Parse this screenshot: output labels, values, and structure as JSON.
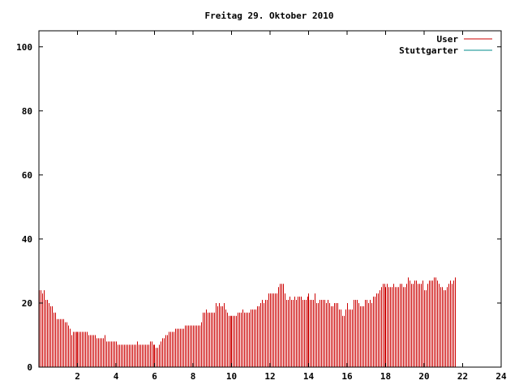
{
  "chart_data": {
    "type": "bar",
    "title": "Freitag 29. Oktober 2010",
    "xlabel": "",
    "ylabel": "",
    "xlim": [
      0,
      24
    ],
    "ylim": [
      0,
      105
    ],
    "grid": false,
    "legend": "top-right",
    "x_ticks": [
      2,
      4,
      6,
      8,
      10,
      12,
      14,
      16,
      18,
      20,
      22,
      24
    ],
    "y_ticks": [
      0,
      20,
      40,
      60,
      80,
      100
    ],
    "colors": {
      "User": "#cc0000",
      "Stuttgarter": "#008b8b"
    },
    "series": [
      {
        "name": "User",
        "x_start": 0,
        "step": 0.08333,
        "values": [
          24,
          24,
          23,
          24,
          21,
          21,
          20,
          19,
          19,
          17,
          17,
          15,
          15,
          15,
          15,
          15,
          14,
          14,
          13,
          12,
          10,
          11,
          11,
          11,
          11,
          11,
          11,
          11,
          11,
          11,
          11,
          10,
          10,
          10,
          10,
          10,
          9,
          9,
          9,
          9,
          9,
          10,
          8,
          8,
          8,
          8,
          8,
          8,
          8,
          7,
          7,
          7,
          7,
          7,
          7,
          7,
          7,
          7,
          7,
          7,
          7,
          8,
          7,
          7,
          7,
          7,
          7,
          7,
          7,
          8,
          8,
          7,
          7,
          6,
          6,
          7,
          8,
          9,
          9,
          10,
          10,
          11,
          11,
          11,
          11,
          12,
          12,
          12,
          12,
          12,
          12,
          13,
          13,
          13,
          13,
          13,
          13,
          13,
          13,
          13,
          13,
          14,
          17,
          17,
          18,
          17,
          17,
          17,
          17,
          17,
          20,
          19,
          20,
          19,
          19,
          20,
          18,
          17,
          16,
          16,
          16,
          16,
          16,
          16,
          17,
          17,
          17,
          18,
          17,
          17,
          17,
          17,
          18,
          18,
          18,
          18,
          19,
          19,
          20,
          21,
          20,
          21,
          21,
          23,
          23,
          23,
          23,
          23,
          23,
          25,
          26,
          26,
          26,
          23,
          21,
          21,
          22,
          21,
          21,
          22,
          21,
          22,
          22,
          22,
          21,
          21,
          21,
          22,
          23,
          21,
          21,
          21,
          23,
          20,
          20,
          21,
          21,
          21,
          21,
          20,
          21,
          20,
          19,
          19,
          20,
          20,
          20,
          18,
          18,
          16,
          16,
          18,
          20,
          18,
          18,
          18,
          21,
          21,
          21,
          20,
          19,
          19,
          19,
          21,
          21,
          20,
          21,
          20,
          22,
          22,
          23,
          23,
          24,
          25,
          26,
          26,
          25,
          26,
          25,
          25,
          25,
          26,
          25,
          25,
          25,
          26,
          26,
          25,
          25,
          26,
          28,
          27,
          26,
          26,
          27,
          27,
          26,
          26,
          26,
          27,
          24,
          24,
          26,
          27,
          27,
          27,
          28,
          28,
          27,
          26,
          25,
          25,
          24,
          24,
          25,
          26,
          27,
          26,
          27,
          28
        ]
      },
      {
        "name": "Stuttgarter",
        "values": []
      }
    ]
  }
}
